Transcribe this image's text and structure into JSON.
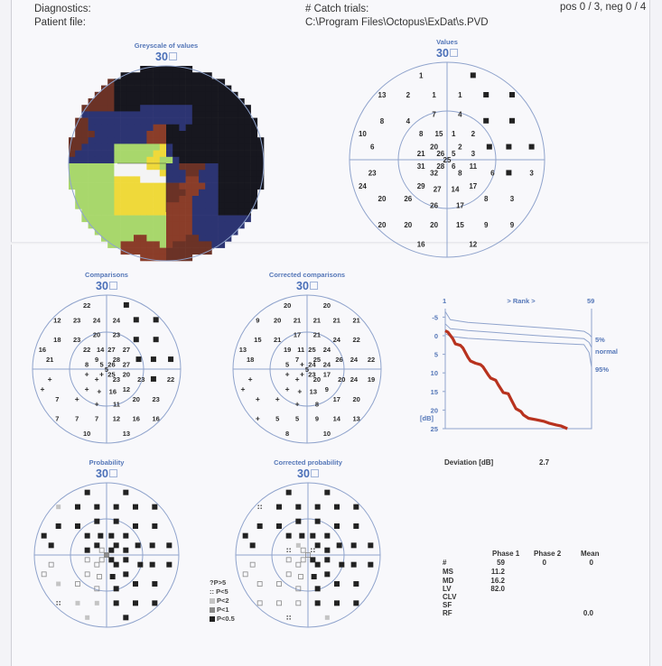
{
  "header": {
    "diagnostics_label": "Diagnostics:",
    "patient_file_label": "Patient file:",
    "catch_trials_label": "# Catch trials:",
    "catch_trials_value": "pos 0 / 3, neg 0 / 4",
    "patient_file_value": "C:\\Program Files\\Octopus\\ExDat\\s.PVD"
  },
  "program": "30",
  "fields": {
    "greyscale": {
      "title": "Greyscale of values"
    },
    "values": {
      "title": "Values"
    },
    "comparisons": {
      "title": "Comparisons"
    },
    "corrected_comparisons": {
      "title": "Corrected comparisons"
    },
    "probability": {
      "title": "Probability"
    },
    "corrected_probability": {
      "title": "Corrected probability"
    }
  },
  "test_locations_deg": [
    [
      -8,
      26
    ],
    [
      8,
      26
    ],
    [
      -20,
      20
    ],
    [
      -12,
      20
    ],
    [
      -4,
      20
    ],
    [
      4,
      20
    ],
    [
      12,
      20
    ],
    [
      20,
      20
    ],
    [
      -20,
      12
    ],
    [
      -12,
      12
    ],
    [
      -4,
      14
    ],
    [
      4,
      14
    ],
    [
      12,
      12
    ],
    [
      20,
      12
    ],
    [
      -26,
      8
    ],
    [
      -8,
      8
    ],
    [
      -2.5,
      8
    ],
    [
      2,
      8
    ],
    [
      8,
      8
    ],
    [
      -23,
      4
    ],
    [
      -4,
      4
    ],
    [
      4,
      4
    ],
    [
      13,
      4
    ],
    [
      19,
      4
    ],
    [
      26,
      4
    ],
    [
      -8,
      2
    ],
    [
      -2,
      2
    ],
    [
      2,
      2
    ],
    [
      8,
      2
    ],
    [
      0,
      0
    ],
    [
      -8,
      -2
    ],
    [
      -2,
      -2
    ],
    [
      2,
      -2
    ],
    [
      8,
      -2
    ],
    [
      -4,
      -4
    ],
    [
      4,
      -4
    ],
    [
      14,
      -4
    ],
    [
      19,
      -4
    ],
    [
      26,
      -4
    ],
    [
      -23,
      -4
    ],
    [
      -26,
      -8
    ],
    [
      -8,
      -8
    ],
    [
      -3,
      -9
    ],
    [
      2.5,
      -9
    ],
    [
      8,
      -8
    ],
    [
      -20,
      -12
    ],
    [
      -12,
      -12
    ],
    [
      12,
      -12
    ],
    [
      20,
      -12
    ],
    [
      -4,
      -14
    ],
    [
      4,
      -14
    ],
    [
      -20,
      -20
    ],
    [
      -12,
      -20
    ],
    [
      -4,
      -20
    ],
    [
      4,
      -20
    ],
    [
      12,
      -20
    ],
    [
      20,
      -20
    ],
    [
      -8,
      -26
    ],
    [
      8,
      -26
    ]
  ],
  "values": [
    "1",
    "■",
    "13",
    "2",
    "1",
    "1",
    "■",
    "■",
    "8",
    "4",
    "7",
    "4",
    "■",
    "■",
    "10",
    "8",
    "15",
    "1",
    "2",
    "6",
    "20",
    "2",
    "■",
    "■",
    "■",
    "21",
    "26",
    "5",
    "3",
    "25",
    "31",
    "28",
    "6",
    "11",
    "32",
    "8",
    "6",
    "■",
    "3",
    "23",
    "24",
    "29",
    "27",
    "14",
    "17",
    "20",
    "26",
    "8",
    "3",
    "26",
    "17",
    "20",
    "20",
    "20",
    "15",
    "9",
    "9",
    "16",
    "12"
  ],
  "comparisons": [
    "22",
    "■",
    "12",
    "23",
    "24",
    "24",
    "■",
    "■",
    "18",
    "23",
    "20",
    "23",
    "■",
    "■",
    "16",
    "22",
    "14",
    "27",
    "27",
    "21",
    "9",
    "28",
    "■",
    "■",
    "■",
    "8",
    "5",
    "26",
    "27",
    "5",
    "+",
    "+",
    "25",
    "20",
    "+",
    "23",
    "23",
    "■",
    "22",
    "+",
    "+",
    "+",
    "+",
    "16",
    "12",
    "7",
    "+",
    "20",
    "23",
    "+",
    "11",
    "7",
    "7",
    "7",
    "12",
    "16",
    "16",
    "10",
    "13"
  ],
  "corrected_comparisons": [
    "20",
    "20",
    "9",
    "20",
    "21",
    "21",
    "21",
    "21",
    "15",
    "21",
    "17",
    "21",
    "24",
    "22",
    "13",
    "19",
    "11",
    "25",
    "24",
    "18",
    "7",
    "25",
    "26",
    "24",
    "22",
    "5",
    "+",
    "24",
    "24",
    "5",
    "+",
    "+",
    "23",
    "17",
    "+",
    "20",
    "20",
    "24",
    "19",
    "+",
    "+",
    "+",
    "+",
    "13",
    "9",
    "+",
    "+",
    "17",
    "20",
    "+",
    "8",
    "+",
    "5",
    "5",
    "9",
    "14",
    "13",
    "8",
    "10"
  ],
  "probability": [
    "P<0.5",
    "P<0.5",
    "P<2",
    "P<0.5",
    "P<0.5",
    "P<0.5",
    "P<0.5",
    "P<0.5",
    "P<0.5",
    "P<0.5",
    "P<0.5",
    "P<0.5",
    "P<0.5",
    "P<0.5",
    "P<0.5",
    "P<0.5",
    "P<0.5",
    "P<0.5",
    "P<0.5",
    "P<0.5",
    "P<0.5",
    "P<0.5",
    "P<0.5",
    "P<0.5",
    "P<0.5",
    "P<0.5",
    "normal",
    "P<0.5",
    "P<0.5",
    "P<1",
    "normal",
    "normal",
    "P<0.5",
    "P<0.5",
    "normal",
    "P<0.5",
    "P<0.5",
    "P<0.5",
    "P<0.5",
    "normal",
    "normal",
    "normal",
    "normal",
    "P<0.5",
    "P<0.5",
    "P<2",
    "normal",
    "P<0.5",
    "P<0.5",
    "normal",
    "P<0.5",
    "P<5",
    "P<2",
    "P<2",
    "P<0.5",
    "P<0.5",
    "P<0.5",
    "P<2",
    "P<0.5"
  ],
  "corrected_probability": [
    "P<0.5",
    "P<0.5",
    "P<5",
    "P<0.5",
    "P<0.5",
    "P<0.5",
    "P<0.5",
    "P<0.5",
    "P<0.5",
    "P<0.5",
    "P<0.5",
    "P<0.5",
    "P<0.5",
    "P<0.5",
    "P<0.5",
    "P<0.5",
    "P<0.5",
    "P<0.5",
    "P<0.5",
    "P<0.5",
    "P<2",
    "P<0.5",
    "P<0.5",
    "P<0.5",
    "P<0.5",
    "P<5",
    "normal",
    "P<5",
    "P<0.5",
    "normal",
    "normal",
    "normal",
    "P<0.5",
    "P<0.5",
    "normal",
    "P<0.5",
    "P<0.5",
    "P<0.5",
    "P<0.5",
    "normal",
    "normal",
    "normal",
    "normal",
    "P<0.5",
    "P<0.5",
    "normal",
    "normal",
    "P<0.5",
    "P<0.5",
    "normal",
    "P<0.5",
    "normal",
    "normal",
    "normal",
    "P<0.5",
    "P<0.5",
    "P<0.5",
    "P<5",
    "P<2"
  ],
  "legend": [
    {
      "label": "?P>5",
      "symbol": "none"
    },
    {
      "label": ":: P<5",
      "symbol": "none"
    },
    {
      "label": "P<2",
      "symbol": "light-grey-square"
    },
    {
      "label": "P<1",
      "symbol": "grey-square"
    },
    {
      "label": "P<0.5",
      "symbol": "black-square"
    }
  ],
  "colors": {
    "title_blue": "#5577b8",
    "curve_red": "#b8321e",
    "grid_blue": "#8fa3cc"
  },
  "chart_data": {
    "type": "line",
    "title": "> Rank >",
    "x_tick_labels": [
      "1",
      "59"
    ],
    "xlim": [
      1,
      59
    ],
    "ylim": [
      -7,
      25
    ],
    "y_inverted": true,
    "y_ticks": [
      "-5",
      "0",
      "5",
      "10",
      "15",
      "20",
      "25"
    ],
    "ylabel": "[dB]",
    "series": [
      {
        "name": "5%",
        "color": "#8fa3cc",
        "points": [
          [
            1,
            -6.5
          ],
          [
            3,
            -4.3
          ],
          [
            10,
            -3.6
          ],
          [
            20,
            -3.1
          ],
          [
            30,
            -2.6
          ],
          [
            40,
            -2.1
          ],
          [
            50,
            -1.6
          ],
          [
            56,
            -1.2
          ],
          [
            58,
            -0.4
          ],
          [
            59,
            0.4
          ]
        ]
      },
      {
        "name": "normal",
        "color": "#8fa3cc",
        "points": [
          [
            1,
            -3.2
          ],
          [
            3,
            -1.9
          ],
          [
            10,
            -1.4
          ],
          [
            20,
            -0.9
          ],
          [
            30,
            -0.4
          ],
          [
            40,
            0.1
          ],
          [
            50,
            0.5
          ],
          [
            56,
            0.8
          ],
          [
            58,
            1.8
          ],
          [
            59,
            3.2
          ]
        ]
      },
      {
        "name": "95%",
        "color": "#8fa3cc",
        "points": [
          [
            1,
            -0.6
          ],
          [
            3,
            0.2
          ],
          [
            10,
            0.7
          ],
          [
            20,
            1.1
          ],
          [
            30,
            1.5
          ],
          [
            40,
            1.9
          ],
          [
            50,
            2.2
          ],
          [
            56,
            2.4
          ],
          [
            58,
            4.5
          ],
          [
            59,
            8.5
          ]
        ]
      },
      {
        "color": "#b8321e",
        "points": [
          [
            1,
            -1.3
          ],
          [
            2,
            -1
          ],
          [
            4,
            0.8
          ],
          [
            5,
            2.2
          ],
          [
            7,
            2.6
          ],
          [
            8,
            3.3
          ],
          [
            10,
            5.8
          ],
          [
            11,
            6.8
          ],
          [
            13,
            7.4
          ],
          [
            15,
            7.8
          ],
          [
            16,
            8.4
          ],
          [
            18,
            10.5
          ],
          [
            19,
            11.4
          ],
          [
            21,
            12
          ],
          [
            22,
            13.2
          ],
          [
            24,
            15.3
          ],
          [
            26,
            15.6
          ],
          [
            27,
            17
          ],
          [
            29,
            19.6
          ],
          [
            31,
            20.4
          ],
          [
            32,
            21.3
          ],
          [
            34,
            22.2
          ],
          [
            37,
            22.6
          ],
          [
            40,
            23
          ],
          [
            42,
            23.5
          ],
          [
            45,
            24
          ],
          [
            47,
            24.3
          ],
          [
            49.4,
            25
          ]
        ]
      }
    ]
  },
  "deviation": {
    "label": "Deviation [dB]",
    "value": "2.7"
  },
  "stats": {
    "columns": [
      "Phase 1",
      "Phase 2",
      "Mean"
    ],
    "rows": [
      {
        "label": "#",
        "values": [
          "59",
          "0",
          "0"
        ]
      },
      {
        "label": "MS",
        "values": [
          "11.2",
          "",
          ""
        ]
      },
      {
        "label": "MD",
        "values": [
          "16.2",
          "",
          ""
        ]
      },
      {
        "label": "LV",
        "values": [
          "82.0",
          "",
          ""
        ]
      },
      {
        "label": "CLV",
        "values": [
          "",
          "",
          ""
        ]
      },
      {
        "label": "SF",
        "values": [
          "",
          "",
          ""
        ]
      },
      {
        "label": "RF",
        "values": [
          "",
          "",
          "0.0"
        ]
      }
    ]
  }
}
